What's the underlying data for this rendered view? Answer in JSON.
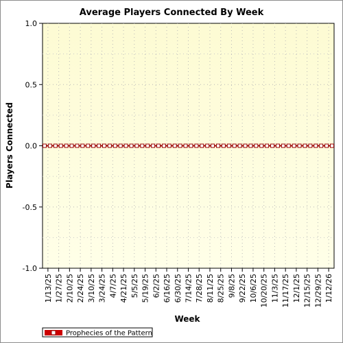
{
  "chart_data": {
    "type": "line",
    "title": "Average Players Connected By Week",
    "xlabel": "Week",
    "ylabel": "Players Connected",
    "ylim": [
      -1.0,
      1.0
    ],
    "yticks": [
      "1.0",
      "0.5",
      "0.0",
      "-0.5",
      "-1.0"
    ],
    "grid": true,
    "legend_position": "bottom-left",
    "colors": {
      "plot_background_top": "#fdfbd3",
      "plot_background_bottom": "#ffffe8",
      "series": "#990000",
      "marker_fill": "#ffffff"
    },
    "x_labels": [
      "1/13/25",
      "1/27/25",
      "2/10/25",
      "2/24/25",
      "3/10/25",
      "3/24/25",
      "4/7/25",
      "4/21/25",
      "5/5/25",
      "5/19/25",
      "6/2/25",
      "6/16/25",
      "6/30/25",
      "7/14/25",
      "7/28/25",
      "8/11/25",
      "8/25/25",
      "9/8/25",
      "9/22/25",
      "10/6/25",
      "10/20/25",
      "11/3/25",
      "11/17/25",
      "12/1/25",
      "12/15/25",
      "12/29/25",
      "1/12/26"
    ],
    "series": [
      {
        "name": "Prophecies of the Pattern",
        "values": [
          0,
          0,
          0,
          0,
          0,
          0,
          0,
          0,
          0,
          0,
          0,
          0,
          0,
          0,
          0,
          0,
          0,
          0,
          0,
          0,
          0,
          0,
          0,
          0,
          0,
          0,
          0,
          0,
          0,
          0,
          0,
          0,
          0,
          0,
          0,
          0,
          0,
          0,
          0,
          0,
          0,
          0,
          0,
          0,
          0,
          0,
          0,
          0,
          0,
          0,
          0,
          0,
          0,
          0
        ]
      }
    ]
  }
}
